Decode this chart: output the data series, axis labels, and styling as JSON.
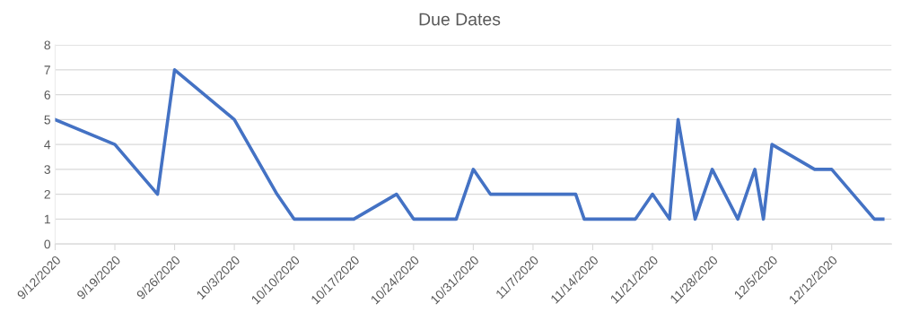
{
  "chart_data": {
    "type": "line",
    "title": "Due Dates",
    "x": [
      "2020-09-12",
      "2020-09-19",
      "2020-09-24",
      "2020-09-26",
      "2020-10-03",
      "2020-10-08",
      "2020-10-10",
      "2020-10-17",
      "2020-10-22",
      "2020-10-24",
      "2020-10-29",
      "2020-10-31",
      "2020-11-02",
      "2020-11-12",
      "2020-11-13",
      "2020-11-19",
      "2020-11-21",
      "2020-11-23",
      "2020-11-24",
      "2020-11-26",
      "2020-11-28",
      "2020-12-01",
      "2020-12-03",
      "2020-12-04",
      "2020-12-05",
      "2020-12-10",
      "2020-12-12",
      "2020-12-17",
      "2020-12-18"
    ],
    "values": [
      5,
      4,
      2,
      7,
      5,
      2,
      1,
      1,
      2,
      1,
      1,
      3,
      2,
      2,
      1,
      1,
      2,
      1,
      5,
      1,
      3,
      1,
      3,
      1,
      4,
      3,
      3,
      1,
      1
    ],
    "color": "#4472c4",
    "xlim": [
      "2020-09-12",
      "2020-12-19"
    ],
    "xticks": [
      {
        "value": "2020-09-12",
        "label": "9/12/2020"
      },
      {
        "value": "2020-09-19",
        "label": "9/19/2020"
      },
      {
        "value": "2020-09-26",
        "label": "9/26/2020"
      },
      {
        "value": "2020-10-03",
        "label": "10/3/2020"
      },
      {
        "value": "2020-10-10",
        "label": "10/10/2020"
      },
      {
        "value": "2020-10-17",
        "label": "10/17/2020"
      },
      {
        "value": "2020-10-24",
        "label": "10/24/2020"
      },
      {
        "value": "2020-10-31",
        "label": "10/31/2020"
      },
      {
        "value": "2020-11-07",
        "label": "11/7/2020"
      },
      {
        "value": "2020-11-14",
        "label": "11/14/2020"
      },
      {
        "value": "2020-11-21",
        "label": "11/21/2020"
      },
      {
        "value": "2020-11-28",
        "label": "11/28/2020"
      },
      {
        "value": "2020-12-05",
        "label": "12/5/2020"
      },
      {
        "value": "2020-12-12",
        "label": "12/12/2020"
      }
    ],
    "ylim": [
      0,
      8
    ],
    "yticks": [
      0,
      1,
      2,
      3,
      4,
      5,
      6,
      7,
      8
    ],
    "grid": "y",
    "marker": "none",
    "line_style": "solid",
    "legend": false
  }
}
